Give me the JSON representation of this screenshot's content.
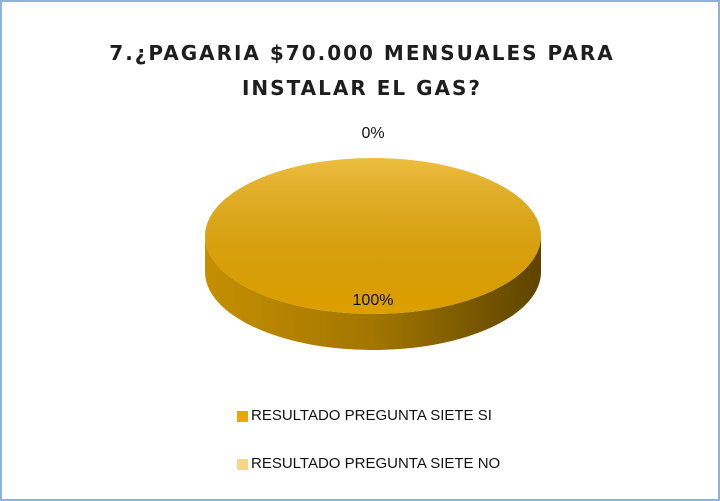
{
  "chart_data": {
    "type": "pie",
    "title": "7.¿PAGARIA $70.000 MENSUALES PARA INSTALAR EL GAS?",
    "categories": [
      "RESULTADO PREGUNTA SIETE SI",
      "RESULTADO PREGUNTA SIETE NO"
    ],
    "values": [
      100,
      0
    ],
    "value_labels": [
      "100%",
      "0%"
    ],
    "colors": [
      "#e8a800",
      "#f8d38a"
    ],
    "legend": "bottom"
  }
}
